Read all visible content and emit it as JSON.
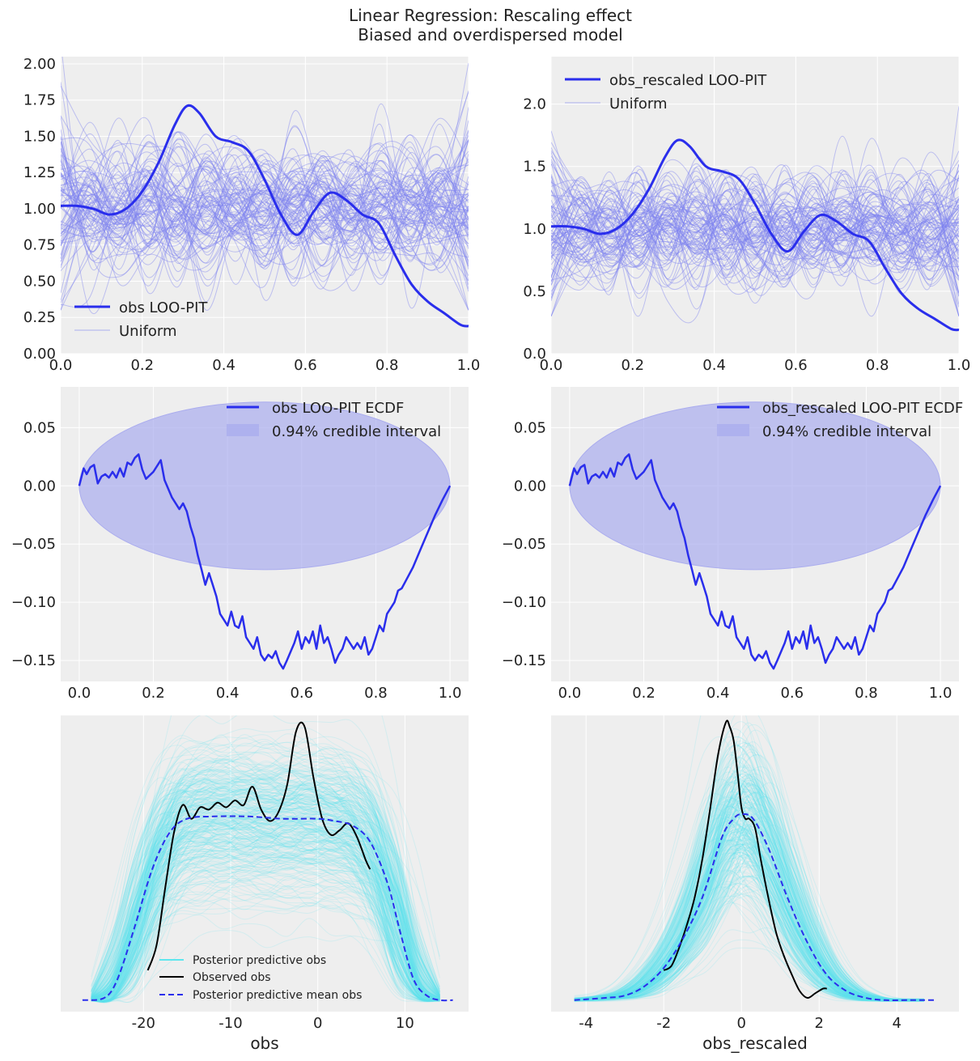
{
  "figure": {
    "title_line1": "Linear Regression: Rescaling effect",
    "title_line2": "Biased and overdispersed model"
  },
  "colors": {
    "axes_bg": "#eeeeee",
    "grid": "#ffffff",
    "primary_line": "#2a2eec",
    "uniform_line": "#7f82ef",
    "band_fill": "#aaacee",
    "ppc_line": "#5ee6ee",
    "observed": "#000000"
  },
  "chart_data": [
    {
      "id": "loo_pit_obs",
      "type": "line",
      "xlim": [
        0,
        1
      ],
      "ylim": [
        0,
        2.05
      ],
      "xticks": [
        "0.0",
        "0.2",
        "0.4",
        "0.6",
        "0.8",
        "1.0"
      ],
      "yticks": [
        "0.00",
        "0.25",
        "0.50",
        "0.75",
        "1.00",
        "1.25",
        "1.50",
        "1.75",
        "2.00"
      ],
      "grid": true,
      "legend_position": "lower-left",
      "legend": [
        "obs LOO-PIT",
        "Uniform"
      ],
      "series": [
        {
          "name": "obs LOO-PIT",
          "x": [
            0.0,
            0.04,
            0.08,
            0.12,
            0.16,
            0.2,
            0.24,
            0.28,
            0.31,
            0.34,
            0.38,
            0.42,
            0.46,
            0.5,
            0.54,
            0.58,
            0.62,
            0.66,
            0.7,
            0.74,
            0.78,
            0.82,
            0.86,
            0.9,
            0.94,
            0.98,
            1.0
          ],
          "y": [
            1.02,
            1.02,
            1.0,
            0.96,
            1.0,
            1.12,
            1.32,
            1.58,
            1.71,
            1.66,
            1.5,
            1.46,
            1.4,
            1.2,
            0.96,
            0.82,
            0.98,
            1.11,
            1.06,
            0.96,
            0.9,
            0.68,
            0.48,
            0.36,
            0.28,
            0.2,
            0.19
          ]
        }
      ],
      "uniform_band": {
        "name": "Uniform",
        "count": 90,
        "center": 1.0,
        "spread": 0.3
      }
    },
    {
      "id": "loo_pit_obs_rescaled",
      "type": "line",
      "xlim": [
        0,
        1
      ],
      "ylim": [
        0,
        2.38
      ],
      "xticks": [
        "0.0",
        "0.2",
        "0.4",
        "0.6",
        "0.8",
        "1.0"
      ],
      "yticks": [
        "0.0",
        "0.5",
        "1.0",
        "1.5",
        "2.0"
      ],
      "grid": true,
      "legend_position": "top-left",
      "legend": [
        "obs_rescaled LOO-PIT",
        "Uniform"
      ],
      "series": [
        {
          "name": "obs_rescaled LOO-PIT",
          "x": [
            0.0,
            0.04,
            0.08,
            0.12,
            0.16,
            0.2,
            0.24,
            0.28,
            0.31,
            0.34,
            0.38,
            0.42,
            0.46,
            0.5,
            0.54,
            0.58,
            0.62,
            0.66,
            0.7,
            0.74,
            0.78,
            0.82,
            0.86,
            0.9,
            0.94,
            0.98,
            1.0
          ],
          "y": [
            1.02,
            1.02,
            1.0,
            0.96,
            1.0,
            1.12,
            1.32,
            1.58,
            1.71,
            1.66,
            1.5,
            1.46,
            1.4,
            1.2,
            0.96,
            0.82,
            0.98,
            1.11,
            1.06,
            0.96,
            0.9,
            0.68,
            0.48,
            0.36,
            0.28,
            0.2,
            0.19
          ]
        }
      ],
      "uniform_band": {
        "name": "Uniform",
        "count": 90,
        "center": 1.0,
        "spread": 0.3
      }
    },
    {
      "id": "ecdf_obs",
      "type": "line",
      "xlim": [
        -0.05,
        1.05
      ],
      "ylim": [
        -0.168,
        0.085
      ],
      "xticks": [
        "0.0",
        "0.2",
        "0.4",
        "0.6",
        "0.8",
        "1.0"
      ],
      "yticks": [
        "-0.15",
        "-0.10",
        "-0.05",
        "0.00",
        "0.05"
      ],
      "grid": true,
      "legend_position": "top-right",
      "legend": [
        "obs LOO-PIT ECDF",
        "0.94% credible interval"
      ],
      "credible_interval": {
        "x_from": 0.0,
        "x_to": 1.0,
        "upper": 0.072,
        "lower": -0.072,
        "peak_x": 0.575,
        "label": "0.94% credible interval"
      },
      "series": [
        {
          "name": "obs LOO-PIT ECDF",
          "x": [
            0.0,
            0.012,
            0.02,
            0.03,
            0.04,
            0.05,
            0.06,
            0.07,
            0.08,
            0.09,
            0.1,
            0.11,
            0.12,
            0.13,
            0.14,
            0.15,
            0.16,
            0.17,
            0.18,
            0.2,
            0.22,
            0.23,
            0.25,
            0.27,
            0.28,
            0.29,
            0.3,
            0.31,
            0.32,
            0.33,
            0.34,
            0.35,
            0.36,
            0.37,
            0.38,
            0.39,
            0.4,
            0.41,
            0.42,
            0.43,
            0.44,
            0.45,
            0.46,
            0.47,
            0.48,
            0.49,
            0.5,
            0.51,
            0.52,
            0.53,
            0.54,
            0.55,
            0.56,
            0.58,
            0.59,
            0.6,
            0.61,
            0.62,
            0.63,
            0.64,
            0.65,
            0.66,
            0.67,
            0.68,
            0.69,
            0.7,
            0.71,
            0.72,
            0.73,
            0.74,
            0.75,
            0.76,
            0.77,
            0.78,
            0.79,
            0.8,
            0.81,
            0.82,
            0.83,
            0.84,
            0.85,
            0.86,
            0.87,
            0.88,
            0.9,
            0.92,
            0.94,
            0.96,
            0.98,
            1.0
          ],
          "y": [
            0.0,
            0.015,
            0.01,
            0.016,
            0.018,
            0.002,
            0.008,
            0.01,
            0.007,
            0.012,
            0.007,
            0.015,
            0.008,
            0.02,
            0.018,
            0.024,
            0.027,
            0.014,
            0.006,
            0.012,
            0.022,
            0.005,
            -0.01,
            -0.02,
            -0.015,
            -0.022,
            -0.035,
            -0.045,
            -0.06,
            -0.072,
            -0.085,
            -0.075,
            -0.085,
            -0.095,
            -0.11,
            -0.115,
            -0.12,
            -0.108,
            -0.12,
            -0.122,
            -0.112,
            -0.13,
            -0.135,
            -0.14,
            -0.13,
            -0.145,
            -0.15,
            -0.145,
            -0.148,
            -0.142,
            -0.152,
            -0.157,
            -0.15,
            -0.135,
            -0.125,
            -0.14,
            -0.13,
            -0.135,
            -0.125,
            -0.14,
            -0.12,
            -0.135,
            -0.13,
            -0.14,
            -0.152,
            -0.145,
            -0.14,
            -0.13,
            -0.135,
            -0.14,
            -0.135,
            -0.14,
            -0.13,
            -0.145,
            -0.14,
            -0.13,
            -0.12,
            -0.125,
            -0.11,
            -0.105,
            -0.1,
            -0.09,
            -0.088,
            -0.082,
            -0.07,
            -0.055,
            -0.04,
            -0.025,
            -0.012,
            0.0
          ]
        }
      ]
    },
    {
      "id": "ecdf_obs_rescaled",
      "type": "line",
      "xlim": [
        -0.05,
        1.05
      ],
      "ylim": [
        -0.168,
        0.085
      ],
      "xticks": [
        "0.0",
        "0.2",
        "0.4",
        "0.6",
        "0.8",
        "1.0"
      ],
      "yticks": [
        "-0.15",
        "-0.10",
        "-0.05",
        "0.00",
        "0.05"
      ],
      "grid": true,
      "legend_position": "top-right",
      "legend": [
        "obs_rescaled LOO-PIT ECDF",
        "0.94% credible interval"
      ],
      "credible_interval": {
        "x_from": 0.0,
        "x_to": 1.0,
        "upper": 0.072,
        "lower": -0.072,
        "peak_x": 0.575,
        "label": "0.94% credible interval"
      },
      "series": [
        {
          "name": "obs_rescaled LOO-PIT ECDF",
          "x": [
            0.0,
            0.012,
            0.02,
            0.03,
            0.04,
            0.05,
            0.06,
            0.07,
            0.08,
            0.09,
            0.1,
            0.11,
            0.12,
            0.13,
            0.14,
            0.15,
            0.16,
            0.17,
            0.18,
            0.2,
            0.22,
            0.23,
            0.25,
            0.27,
            0.28,
            0.29,
            0.3,
            0.31,
            0.32,
            0.33,
            0.34,
            0.35,
            0.36,
            0.37,
            0.38,
            0.39,
            0.4,
            0.41,
            0.42,
            0.43,
            0.44,
            0.45,
            0.46,
            0.47,
            0.48,
            0.49,
            0.5,
            0.51,
            0.52,
            0.53,
            0.54,
            0.55,
            0.56,
            0.58,
            0.59,
            0.6,
            0.61,
            0.62,
            0.63,
            0.64,
            0.65,
            0.66,
            0.67,
            0.68,
            0.69,
            0.7,
            0.71,
            0.72,
            0.73,
            0.74,
            0.75,
            0.76,
            0.77,
            0.78,
            0.79,
            0.8,
            0.81,
            0.82,
            0.83,
            0.84,
            0.85,
            0.86,
            0.87,
            0.88,
            0.9,
            0.92,
            0.94,
            0.96,
            0.98,
            1.0
          ],
          "y": [
            0.0,
            0.015,
            0.01,
            0.016,
            0.018,
            0.002,
            0.008,
            0.01,
            0.007,
            0.012,
            0.007,
            0.015,
            0.008,
            0.02,
            0.018,
            0.024,
            0.027,
            0.014,
            0.006,
            0.012,
            0.022,
            0.005,
            -0.01,
            -0.02,
            -0.015,
            -0.022,
            -0.035,
            -0.045,
            -0.06,
            -0.072,
            -0.085,
            -0.075,
            -0.085,
            -0.095,
            -0.11,
            -0.115,
            -0.12,
            -0.108,
            -0.12,
            -0.122,
            -0.112,
            -0.13,
            -0.135,
            -0.14,
            -0.13,
            -0.145,
            -0.15,
            -0.145,
            -0.148,
            -0.142,
            -0.152,
            -0.157,
            -0.15,
            -0.135,
            -0.125,
            -0.14,
            -0.13,
            -0.135,
            -0.125,
            -0.14,
            -0.12,
            -0.135,
            -0.13,
            -0.14,
            -0.152,
            -0.145,
            -0.14,
            -0.13,
            -0.135,
            -0.14,
            -0.135,
            -0.14,
            -0.13,
            -0.145,
            -0.14,
            -0.13,
            -0.12,
            -0.125,
            -0.11,
            -0.105,
            -0.1,
            -0.09,
            -0.088,
            -0.082,
            -0.07,
            -0.055,
            -0.04,
            -0.025,
            -0.012,
            0.0
          ]
        }
      ]
    },
    {
      "id": "ppc_obs",
      "type": "line",
      "xlim": [
        -29.5,
        17.3
      ],
      "ylim": [
        -0.04,
        1.25
      ],
      "xticks": [
        "-20",
        "-10",
        "0",
        "10"
      ],
      "xtick_values": [
        -20,
        -10,
        0,
        10
      ],
      "yticks": [],
      "xlabel": "obs",
      "grid": true,
      "legend_position": "lower-center",
      "legend": [
        "Posterior predictive obs",
        "Observed obs",
        "Posterior predictive mean obs"
      ],
      "series": [
        {
          "name": "Observed obs",
          "x": [
            -19.5,
            -18.5,
            -17.5,
            -16.5,
            -15.5,
            -14.5,
            -13.5,
            -12.5,
            -11.5,
            -10.5,
            -9.5,
            -8.5,
            -7.5,
            -6.5,
            -5.5,
            -4.5,
            -3.5,
            -2.5,
            -1.5,
            -0.5,
            0.5,
            1.5,
            2.5,
            3.5,
            4.5,
            5.5,
            6.0
          ],
          "y": [
            0.14,
            0.25,
            0.5,
            0.74,
            0.86,
            0.8,
            0.85,
            0.84,
            0.87,
            0.85,
            0.88,
            0.86,
            0.94,
            0.84,
            0.79,
            0.83,
            0.95,
            1.18,
            1.2,
            0.98,
            0.8,
            0.73,
            0.75,
            0.78,
            0.72,
            0.62,
            0.58
          ]
        },
        {
          "name": "Posterior predictive mean obs",
          "x": [
            -27,
            -24.5,
            -23,
            -21,
            -19,
            -17,
            -15,
            -12,
            -8,
            -4,
            0,
            2,
            4,
            6,
            8,
            9.5,
            11,
            12.5,
            14,
            15.5
          ],
          "y": [
            0.01,
            0.02,
            0.1,
            0.33,
            0.58,
            0.74,
            0.8,
            0.81,
            0.81,
            0.8,
            0.8,
            0.79,
            0.77,
            0.7,
            0.52,
            0.3,
            0.1,
            0.03,
            0.01,
            0.01
          ]
        }
      ],
      "ppc_band": {
        "name": "Posterior predictive obs",
        "count": 300,
        "x_min": -26,
        "x_max": 14
      }
    },
    {
      "id": "ppc_obs_rescaled",
      "type": "line",
      "xlim": [
        -4.9,
        5.6
      ],
      "ylim": [
        -0.04,
        1.25
      ],
      "xticks": [
        "-4",
        "-2",
        "0",
        "2",
        "4"
      ],
      "xtick_values": [
        -4,
        -2,
        0,
        2,
        4
      ],
      "yticks": [],
      "xlabel": "obs_rescaled",
      "grid": true,
      "legend_position": "none",
      "legend": [],
      "series": [
        {
          "name": "Observed obs",
          "x": [
            -2.0,
            -1.8,
            -1.6,
            -1.4,
            -1.2,
            -1.0,
            -0.8,
            -0.6,
            -0.4,
            -0.3,
            -0.2,
            -0.1,
            0.0,
            0.1,
            0.2,
            0.35,
            0.5,
            0.7,
            0.9,
            1.1,
            1.3,
            1.5,
            1.7,
            1.9,
            2.1,
            2.2
          ],
          "y": [
            0.14,
            0.16,
            0.24,
            0.34,
            0.46,
            0.63,
            0.85,
            1.08,
            1.22,
            1.2,
            1.14,
            1.0,
            0.85,
            0.8,
            0.8,
            0.76,
            0.62,
            0.45,
            0.3,
            0.2,
            0.12,
            0.05,
            0.02,
            0.04,
            0.06,
            0.06
          ]
        },
        {
          "name": "Posterior predictive mean obs",
          "x": [
            -4.3,
            -3.5,
            -3.0,
            -2.5,
            -2.0,
            -1.5,
            -1.0,
            -0.5,
            -0.2,
            0.0,
            0.3,
            0.7,
            1.2,
            1.7,
            2.2,
            2.7,
            3.2,
            3.7,
            4.3,
            5.0
          ],
          "y": [
            0.01,
            0.02,
            0.03,
            0.07,
            0.15,
            0.28,
            0.46,
            0.72,
            0.8,
            0.82,
            0.8,
            0.67,
            0.45,
            0.26,
            0.12,
            0.05,
            0.02,
            0.01,
            0.01,
            0.01
          ]
        }
      ],
      "ppc_band": {
        "name": "Posterior predictive obs",
        "count": 300,
        "x_min": -4.3,
        "x_max": 4.7
      }
    }
  ]
}
